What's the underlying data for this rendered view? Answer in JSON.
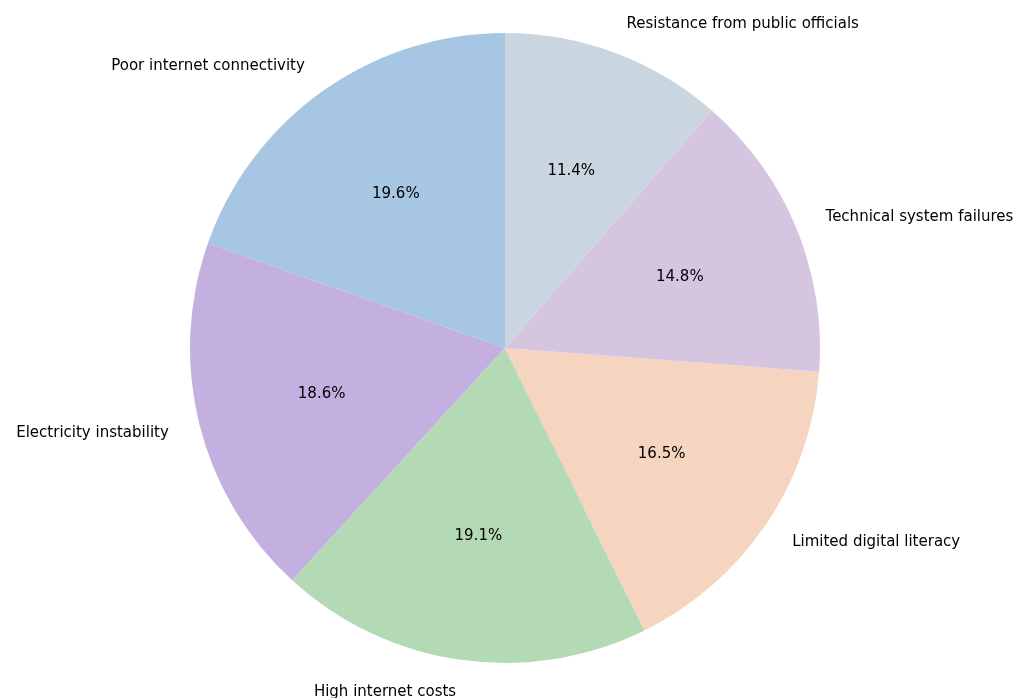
{
  "chart_data": {
    "type": "pie",
    "categories": [
      "Poor internet connectivity",
      "Electricity instability",
      "High internet costs",
      "Limited digital literacy",
      "Technical system failures",
      "Resistance from public officials"
    ],
    "values": [
      19.6,
      18.6,
      19.1,
      16.5,
      14.8,
      11.4
    ],
    "colors": [
      "#a6c6e4",
      "#c3b0e0",
      "#b4d9b5",
      "#f5d5bf",
      "#d6c5e0",
      "#c9d5df"
    ],
    "value_labels": [
      "19.6%",
      "18.6%",
      "19.1%",
      "16.5%",
      "14.8%",
      "11.4%"
    ],
    "legend": false
  }
}
